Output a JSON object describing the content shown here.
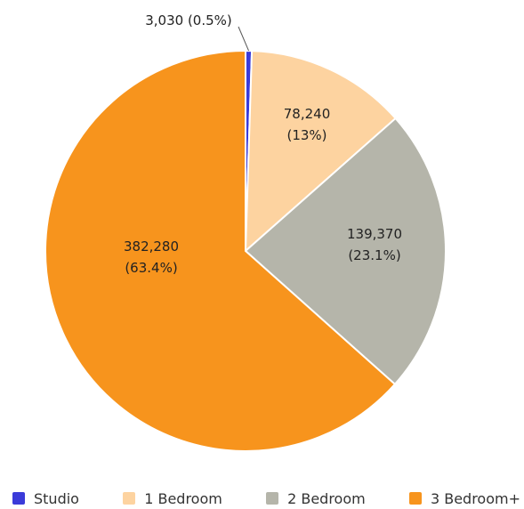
{
  "chart_data": {
    "type": "pie",
    "title": "",
    "categories": [
      "Studio",
      "1 Bedroom",
      "2 Bedroom",
      "3 Bedroom+"
    ],
    "values": [
      3030,
      78240,
      139370,
      382280
    ],
    "labels": [
      "3,030 (0.5%)",
      "78,240\n(13%)",
      "139,370\n(23.1%)",
      "382,280\n(63.4%)"
    ],
    "colors": [
      "#3b3bd9",
      "#fdd3a0",
      "#b5b5aa",
      "#f7941d"
    ],
    "start_angle": "12 o'clock",
    "direction": "clockwise",
    "legend_position": "bottom"
  }
}
